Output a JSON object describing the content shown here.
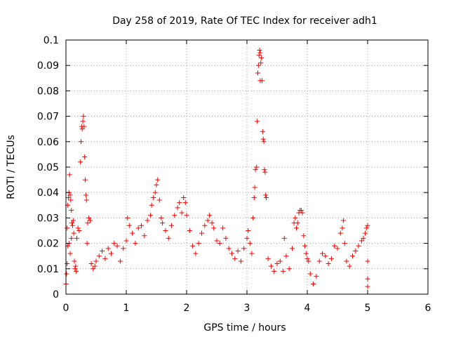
{
  "chart_data": {
    "type": "scatter",
    "title": "Day 258 of 2019, Rate Of TEC Index for receiver adh1",
    "xlabel": "GPS time / hours",
    "ylabel": "ROTI / TECUs",
    "xlim": [
      0,
      6
    ],
    "ylim": [
      0,
      0.1
    ],
    "x_ticks": [
      "0",
      "1",
      "2",
      "3",
      "4",
      "5",
      "6"
    ],
    "y_ticks": [
      "0",
      "0.01",
      "0.02",
      "0.03",
      "0.04",
      "0.05",
      "0.06",
      "0.07",
      "0.08",
      "0.09",
      "0.1"
    ],
    "grid": true,
    "marker": "+",
    "marker_color": "#ff0000",
    "series": [
      {
        "points": [
          [
            0.0,
            0.004
          ],
          [
            0.01,
            0.008
          ],
          [
            0.02,
            0.012
          ],
          [
            0.02,
            0.026
          ],
          [
            0.03,
            0.035
          ],
          [
            0.04,
            0.038
          ],
          [
            0.05,
            0.04
          ],
          [
            0.06,
            0.047
          ],
          [
            0.07,
            0.039
          ],
          [
            0.08,
            0.037
          ],
          [
            0.09,
            0.033
          ],
          [
            0.1,
            0.028
          ],
          [
            0.03,
            0.019
          ],
          [
            0.05,
            0.02
          ],
          [
            0.07,
            0.016
          ],
          [
            0.09,
            0.022
          ],
          [
            0.11,
            0.027
          ],
          [
            0.12,
            0.029
          ],
          [
            0.13,
            0.024
          ],
          [
            0.14,
            0.013
          ],
          [
            0.15,
            0.01
          ],
          [
            0.16,
            0.011
          ],
          [
            0.17,
            0.009
          ],
          [
            0.18,
            0.022
          ],
          [
            0.2,
            0.026
          ],
          [
            0.22,
            0.025
          ],
          [
            0.24,
            0.052
          ],
          [
            0.25,
            0.06
          ],
          [
            0.26,
            0.066
          ],
          [
            0.27,
            0.065
          ],
          [
            0.28,
            0.068
          ],
          [
            0.29,
            0.07
          ],
          [
            0.3,
            0.066
          ],
          [
            0.31,
            0.054
          ],
          [
            0.32,
            0.045
          ],
          [
            0.33,
            0.039
          ],
          [
            0.34,
            0.037
          ],
          [
            0.35,
            0.02
          ],
          [
            0.36,
            0.028
          ],
          [
            0.38,
            0.03
          ],
          [
            0.4,
            0.029
          ],
          [
            0.42,
            0.012
          ],
          [
            0.45,
            0.01
          ],
          [
            0.48,
            0.011
          ],
          [
            0.5,
            0.013
          ],
          [
            0.55,
            0.015
          ],
          [
            0.6,
            0.017
          ],
          [
            0.65,
            0.014
          ],
          [
            0.7,
            0.018
          ],
          [
            0.75,
            0.016
          ],
          [
            0.8,
            0.02
          ],
          [
            0.85,
            0.019
          ],
          [
            0.9,
            0.013
          ],
          [
            0.95,
            0.018
          ],
          [
            1.0,
            0.021
          ],
          [
            1.02,
            0.03
          ],
          [
            1.05,
            0.027
          ],
          [
            1.1,
            0.024
          ],
          [
            1.15,
            0.02
          ],
          [
            1.2,
            0.026
          ],
          [
            1.25,
            0.027
          ],
          [
            1.3,
            0.023
          ],
          [
            1.35,
            0.029
          ],
          [
            1.4,
            0.031
          ],
          [
            1.42,
            0.035
          ],
          [
            1.45,
            0.038
          ],
          [
            1.48,
            0.04
          ],
          [
            1.5,
            0.043
          ],
          [
            1.52,
            0.045
          ],
          [
            1.55,
            0.037
          ],
          [
            1.58,
            0.03
          ],
          [
            1.6,
            0.028
          ],
          [
            1.65,
            0.025
          ],
          [
            1.7,
            0.022
          ],
          [
            1.75,
            0.027
          ],
          [
            1.8,
            0.031
          ],
          [
            1.85,
            0.034
          ],
          [
            1.88,
            0.036
          ],
          [
            1.92,
            0.032
          ],
          [
            1.95,
            0.038
          ],
          [
            1.98,
            0.036
          ],
          [
            2.0,
            0.031
          ],
          [
            2.05,
            0.025
          ],
          [
            2.1,
            0.019
          ],
          [
            2.15,
            0.016
          ],
          [
            2.2,
            0.02
          ],
          [
            2.25,
            0.024
          ],
          [
            2.3,
            0.027
          ],
          [
            2.35,
            0.029
          ],
          [
            2.38,
            0.031
          ],
          [
            2.42,
            0.028
          ],
          [
            2.45,
            0.026
          ],
          [
            2.5,
            0.021
          ],
          [
            2.55,
            0.02
          ],
          [
            2.6,
            0.026
          ],
          [
            2.65,
            0.022
          ],
          [
            2.7,
            0.018
          ],
          [
            2.75,
            0.016
          ],
          [
            2.8,
            0.014
          ],
          [
            2.85,
            0.017
          ],
          [
            2.9,
            0.013
          ],
          [
            2.95,
            0.018
          ],
          [
            3.0,
            0.022
          ],
          [
            3.02,
            0.025
          ],
          [
            3.05,
            0.02
          ],
          [
            3.08,
            0.016
          ],
          [
            3.1,
            0.03
          ],
          [
            3.12,
            0.038
          ],
          [
            3.13,
            0.042
          ],
          [
            3.14,
            0.049
          ],
          [
            3.16,
            0.05
          ],
          [
            3.17,
            0.068
          ],
          [
            3.18,
            0.087
          ],
          [
            3.19,
            0.09
          ],
          [
            3.2,
            0.094
          ],
          [
            3.21,
            0.096
          ],
          [
            3.22,
            0.095
          ],
          [
            3.23,
            0.091
          ],
          [
            3.24,
            0.093
          ],
          [
            3.22,
            0.084
          ],
          [
            3.25,
            0.084
          ],
          [
            3.26,
            0.064
          ],
          [
            3.27,
            0.061
          ],
          [
            3.28,
            0.06
          ],
          [
            3.29,
            0.049
          ],
          [
            3.3,
            0.048
          ],
          [
            3.31,
            0.039
          ],
          [
            3.32,
            0.038
          ],
          [
            3.35,
            0.014
          ],
          [
            3.4,
            0.011
          ],
          [
            3.45,
            0.009
          ],
          [
            3.5,
            0.012
          ],
          [
            3.55,
            0.013
          ],
          [
            3.6,
            0.009
          ],
          [
            3.62,
            0.022
          ],
          [
            3.65,
            0.015
          ],
          [
            3.7,
            0.01
          ],
          [
            3.75,
            0.018
          ],
          [
            3.78,
            0.028
          ],
          [
            3.8,
            0.03
          ],
          [
            3.82,
            0.026
          ],
          [
            3.84,
            0.028
          ],
          [
            3.86,
            0.032
          ],
          [
            3.88,
            0.033
          ],
          [
            3.9,
            0.033
          ],
          [
            3.92,
            0.032
          ],
          [
            3.94,
            0.023
          ],
          [
            3.96,
            0.019
          ],
          [
            3.98,
            0.016
          ],
          [
            4.0,
            0.014
          ],
          [
            4.02,
            0.013
          ],
          [
            4.05,
            0.008
          ],
          [
            4.1,
            0.004
          ],
          [
            4.15,
            0.007
          ],
          [
            4.2,
            0.013
          ],
          [
            4.25,
            0.016
          ],
          [
            4.3,
            0.015
          ],
          [
            4.35,
            0.012
          ],
          [
            4.4,
            0.014
          ],
          [
            4.45,
            0.019
          ],
          [
            4.5,
            0.018
          ],
          [
            4.55,
            0.024
          ],
          [
            4.58,
            0.026
          ],
          [
            4.6,
            0.029
          ],
          [
            4.62,
            0.02
          ],
          [
            4.65,
            0.013
          ],
          [
            4.7,
            0.011
          ],
          [
            4.75,
            0.015
          ],
          [
            4.8,
            0.017
          ],
          [
            4.85,
            0.019
          ],
          [
            4.9,
            0.021
          ],
          [
            4.93,
            0.022
          ],
          [
            4.96,
            0.024
          ],
          [
            4.98,
            0.026
          ],
          [
            5.0,
            0.027
          ],
          [
            5.0,
            0.013
          ],
          [
            5.0,
            0.006
          ],
          [
            5.0,
            0.003
          ]
        ]
      }
    ]
  }
}
